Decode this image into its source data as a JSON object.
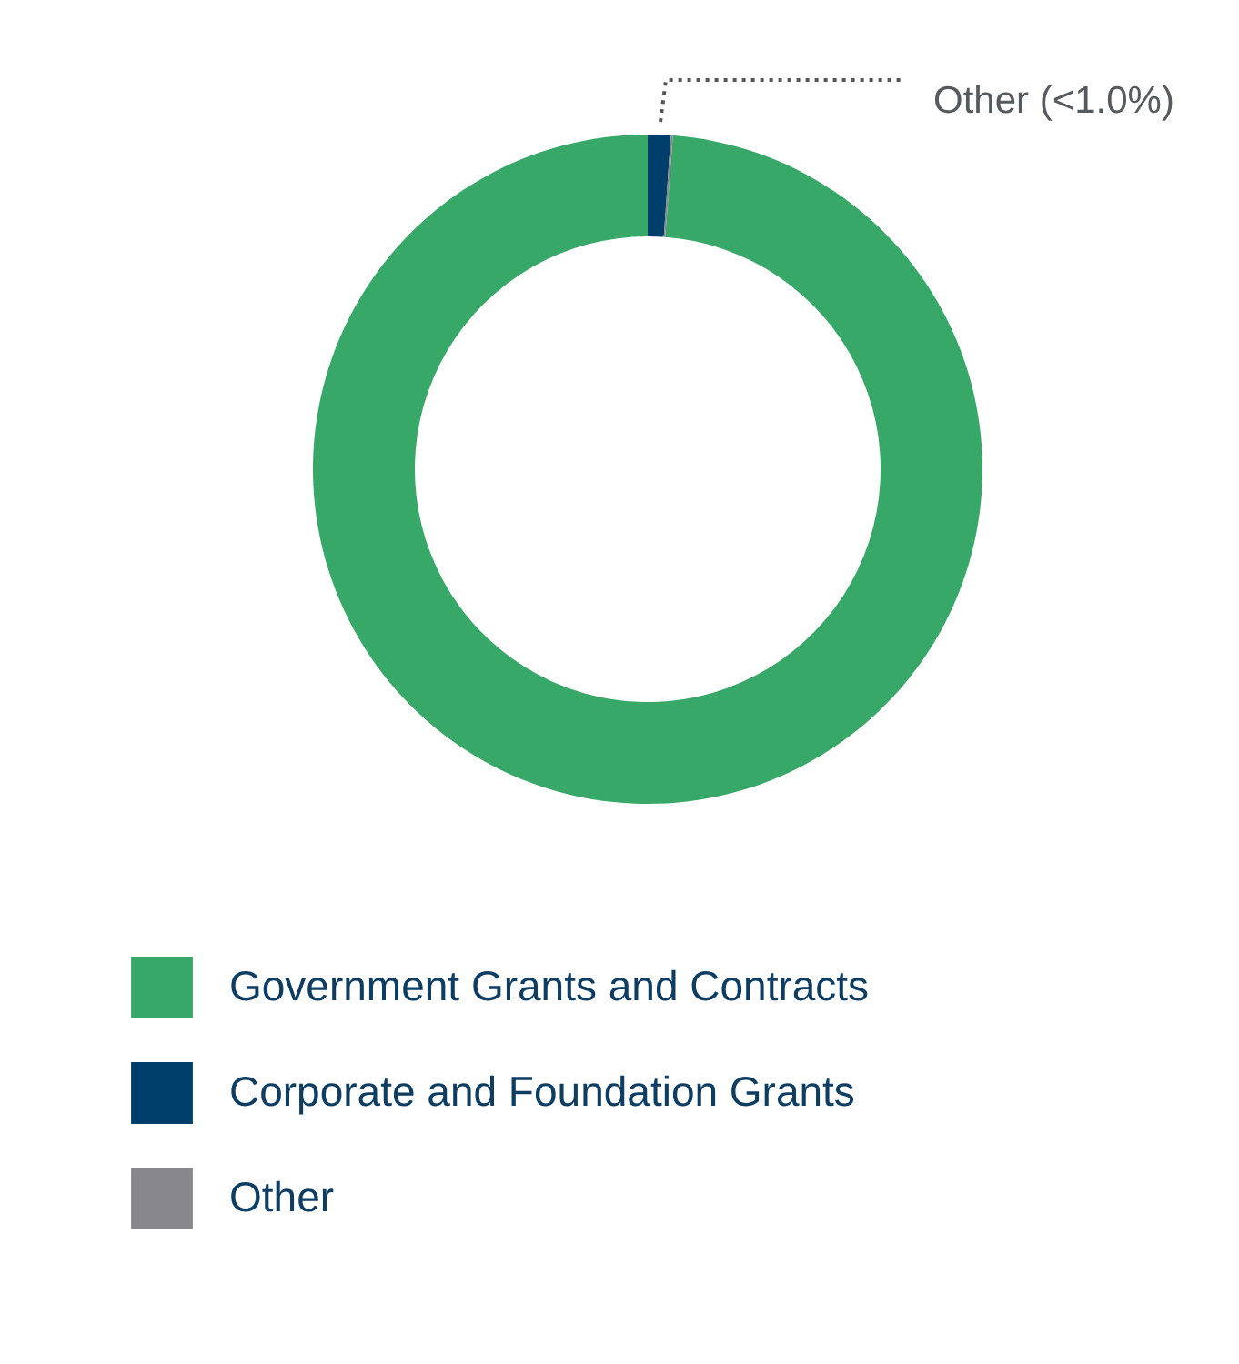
{
  "chart_data": {
    "type": "donut",
    "categories": [
      "Government Grants and Contracts",
      "Corporate and Foundation Grants",
      "Other"
    ],
    "values": [
      98.8,
      1.1,
      0.1
    ],
    "colors": [
      "#38a869",
      "#003e6b",
      "#87878c"
    ],
    "annotations": [
      "Other (<1.0%)"
    ],
    "legend": "bottom"
  }
}
